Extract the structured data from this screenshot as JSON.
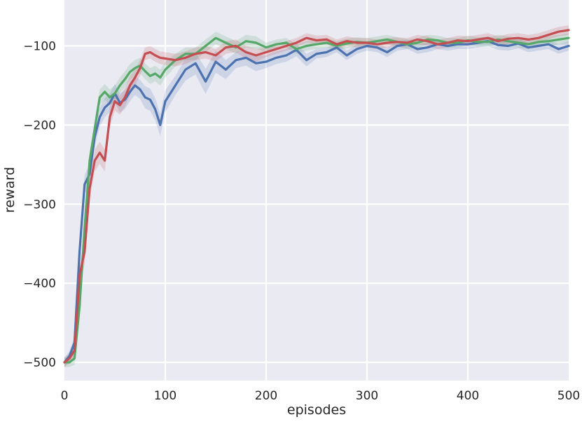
{
  "chart_data": {
    "type": "line",
    "title": "",
    "xlabel": "episodes",
    "ylabel": "reward",
    "xlim": [
      0,
      500
    ],
    "ylim": [
      -523,
      -42
    ],
    "xticks": [
      0,
      100,
      200,
      300,
      400,
      500
    ],
    "yticks": [
      -500,
      -400,
      -300,
      -200,
      -100
    ],
    "ytick_labels": [
      "−500",
      "−400",
      "−300",
      "−200",
      "−100"
    ],
    "grid": true,
    "legend": "none",
    "colors": {
      "background": "#EAEAF2",
      "grid": "#FFFFFF"
    },
    "x": [
      0,
      5,
      10,
      15,
      20,
      25,
      30,
      35,
      40,
      45,
      50,
      55,
      60,
      65,
      70,
      75,
      80,
      85,
      90,
      95,
      100,
      110,
      120,
      130,
      140,
      150,
      160,
      170,
      180,
      190,
      200,
      210,
      220,
      230,
      240,
      250,
      260,
      270,
      280,
      290,
      300,
      310,
      320,
      330,
      340,
      350,
      360,
      370,
      380,
      390,
      400,
      410,
      420,
      430,
      440,
      450,
      460,
      470,
      480,
      490,
      500
    ],
    "series": [
      {
        "color": "#4C72B0",
        "values": [
          -500,
          -492,
          -475,
          -360,
          -275,
          -262,
          -215,
          -190,
          -178,
          -172,
          -160,
          -172,
          -168,
          -158,
          -150,
          -155,
          -165,
          -168,
          -180,
          -200,
          -170,
          -150,
          -130,
          -122,
          -145,
          -120,
          -130,
          -118,
          -115,
          -122,
          -120,
          -115,
          -112,
          -105,
          -118,
          -110,
          -108,
          -102,
          -112,
          -104,
          -100,
          -102,
          -108,
          -100,
          -98,
          -104,
          -102,
          -98,
          -100,
          -98,
          -98,
          -96,
          -94,
          -99,
          -100,
          -97,
          -102,
          -100,
          -98,
          -104,
          -100
        ],
        "band": [
          6,
          6,
          8,
          12,
          12,
          12,
          12,
          12,
          12,
          12,
          12,
          12,
          12,
          12,
          12,
          12,
          14,
          14,
          14,
          14,
          14,
          12,
          14,
          14,
          16,
          14,
          12,
          10,
          10,
          10,
          8,
          8,
          8,
          8,
          8,
          6,
          6,
          6,
          6,
          6,
          6,
          6,
          6,
          6,
          6,
          6,
          6,
          6,
          6,
          6,
          6,
          6,
          6,
          6,
          6,
          6,
          6,
          6,
          6,
          6,
          6
        ]
      },
      {
        "color": "#55A868",
        "values": [
          -500,
          -500,
          -495,
          -430,
          -330,
          -245,
          -205,
          -165,
          -158,
          -165,
          -160,
          -150,
          -142,
          -133,
          -128,
          -125,
          -132,
          -138,
          -135,
          -140,
          -130,
          -118,
          -110,
          -110,
          -100,
          -90,
          -96,
          -102,
          -94,
          -96,
          -102,
          -98,
          -96,
          -104,
          -100,
          -98,
          -96,
          -100,
          -97,
          -95,
          -96,
          -94,
          -92,
          -95,
          -98,
          -96,
          -92,
          -93,
          -96,
          -96,
          -93,
          -95,
          -95,
          -92,
          -94,
          -96,
          -98,
          -95,
          -94,
          -92,
          -90
        ],
        "band": [
          6,
          6,
          8,
          10,
          10,
          10,
          10,
          10,
          10,
          10,
          10,
          10,
          10,
          10,
          10,
          10,
          10,
          10,
          10,
          10,
          10,
          8,
          8,
          8,
          8,
          8,
          8,
          8,
          8,
          8,
          6,
          6,
          6,
          6,
          6,
          6,
          6,
          6,
          6,
          6,
          6,
          6,
          6,
          6,
          6,
          6,
          6,
          6,
          6,
          6,
          6,
          6,
          6,
          6,
          6,
          6,
          6,
          6,
          6,
          6,
          6
        ]
      },
      {
        "color": "#C44E52",
        "values": [
          -500,
          -495,
          -485,
          -390,
          -360,
          -280,
          -245,
          -235,
          -245,
          -190,
          -170,
          -175,
          -165,
          -150,
          -140,
          -128,
          -110,
          -108,
          -112,
          -115,
          -116,
          -118,
          -115,
          -110,
          -108,
          -112,
          -102,
          -100,
          -108,
          -112,
          -108,
          -104,
          -100,
          -96,
          -90,
          -93,
          -92,
          -98,
          -94,
          -96,
          -96,
          -98,
          -96,
          -95,
          -96,
          -92,
          -94,
          -98,
          -96,
          -93,
          -94,
          -92,
          -90,
          -94,
          -91,
          -90,
          -92,
          -90,
          -86,
          -82,
          -80
        ],
        "band": [
          6,
          6,
          10,
          14,
          16,
          14,
          14,
          14,
          14,
          12,
          12,
          12,
          12,
          12,
          10,
          10,
          8,
          8,
          8,
          8,
          8,
          8,
          8,
          8,
          8,
          8,
          8,
          8,
          8,
          8,
          6,
          6,
          6,
          6,
          6,
          6,
          6,
          6,
          6,
          6,
          6,
          6,
          6,
          6,
          6,
          6,
          6,
          6,
          6,
          6,
          6,
          6,
          6,
          6,
          6,
          6,
          6,
          6,
          6,
          6,
          6
        ]
      }
    ]
  }
}
